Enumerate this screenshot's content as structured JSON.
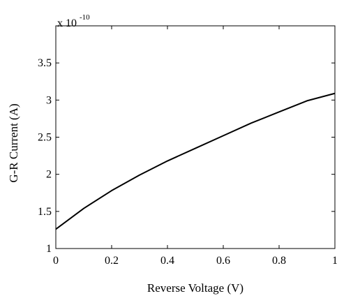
{
  "chart_data": {
    "type": "line",
    "title": "",
    "xlabel": "Reverse Voltage (V)",
    "ylabel": "G-R Current (A)",
    "y_multiplier": {
      "base": "x 10",
      "exponent": "-10"
    },
    "xlim": [
      0,
      1
    ],
    "ylim": [
      1,
      4
    ],
    "grid": false,
    "legend": "none",
    "x_ticks": [
      {
        "value": 0,
        "label": "0"
      },
      {
        "value": 0.2,
        "label": "0.2"
      },
      {
        "value": 0.4,
        "label": "0.4"
      },
      {
        "value": 0.6,
        "label": "0.6"
      },
      {
        "value": 0.8,
        "label": "0.8"
      },
      {
        "value": 1,
        "label": "1"
      }
    ],
    "y_ticks": [
      {
        "value": 1,
        "label": "1"
      },
      {
        "value": 1.5,
        "label": "1.5"
      },
      {
        "value": 2,
        "label": "2"
      },
      {
        "value": 2.5,
        "label": "2.5"
      },
      {
        "value": 3,
        "label": "3"
      },
      {
        "value": 3.5,
        "label": "3.5"
      }
    ],
    "series": [
      {
        "color": "#000000",
        "x": [
          0,
          0.1,
          0.2,
          0.3,
          0.4,
          0.5,
          0.6,
          0.7,
          0.8,
          0.9,
          1.0
        ],
        "y": [
          1.26,
          1.54,
          1.78,
          1.99,
          2.18,
          2.35,
          2.52,
          2.69,
          2.84,
          2.99,
          3.09
        ]
      }
    ]
  }
}
